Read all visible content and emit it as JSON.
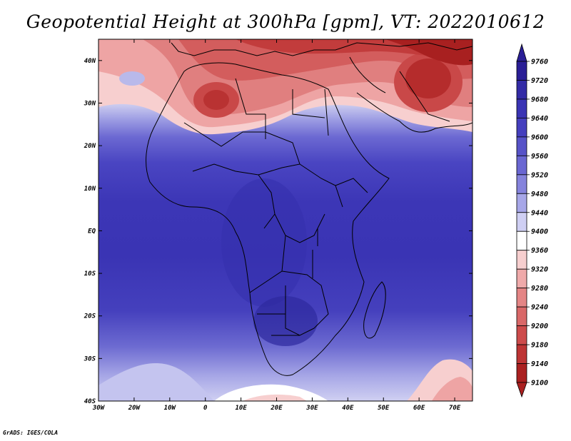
{
  "title": "Geopotential Height at 300hPa [gpm], VT: 2022010612",
  "credit": "GrADS: IGES/COLA",
  "lon_ticks": [
    "30W",
    "20W",
    "10W",
    "0",
    "10E",
    "20E",
    "30E",
    "40E",
    "50E",
    "60E",
    "70E"
  ],
  "lat_ticks": [
    "40N",
    "30N",
    "20N",
    "10N",
    "EQ",
    "10S",
    "20S",
    "30S",
    "40S"
  ],
  "colorbar": {
    "levels": [
      "9760",
      "9720",
      "9680",
      "9640",
      "9600",
      "9560",
      "9520",
      "9480",
      "9440",
      "9400",
      "9360",
      "9320",
      "9280",
      "9240",
      "9200",
      "9180",
      "9140",
      "9100"
    ],
    "colors": [
      "#2a1e96",
      "#332ba6",
      "#3a34b4",
      "#453fbe",
      "#5753c8",
      "#6a67d2",
      "#8583dc",
      "#a7a7e8",
      "#cfcff3",
      "#ffffff",
      "#f7cfcf",
      "#efaaaa",
      "#e48585",
      "#d96868",
      "#cd4b4b",
      "#bd3434",
      "#aa2020"
    ]
  },
  "chart_data": {
    "type": "heatmap",
    "variable": "Geopotential Height at 300hPa",
    "units": "gpm",
    "valid_time": "2022010612",
    "lon_range": [
      -30,
      75
    ],
    "lat_range": [
      -40,
      45
    ],
    "contour_interval": 40,
    "value_range": [
      9100,
      9760
    ]
  }
}
